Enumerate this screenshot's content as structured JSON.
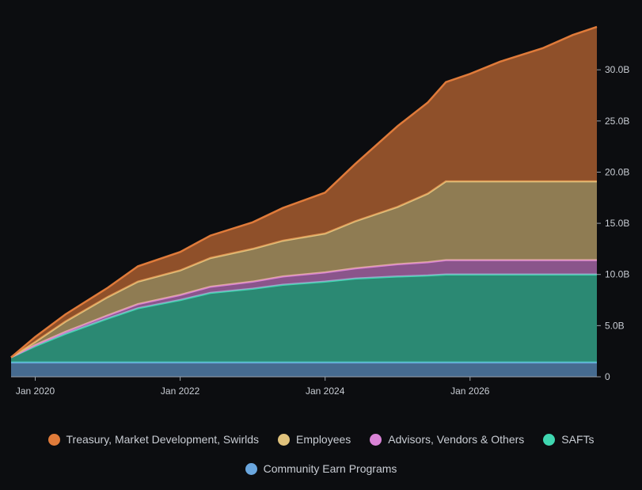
{
  "chart_data": {
    "type": "area",
    "stacked": true,
    "x": [
      "2019-09",
      "2020-01",
      "2020-06",
      "2021-01",
      "2021-06",
      "2022-01",
      "2022-06",
      "2023-01",
      "2023-06",
      "2024-01",
      "2024-06",
      "2025-01",
      "2025-06",
      "2025-09",
      "2026-01",
      "2026-06",
      "2027-01",
      "2027-06",
      "2027-10"
    ],
    "series": [
      {
        "name": "Community Earn Programs",
        "color": "#6aa6de",
        "values": [
          1.4,
          1.4,
          1.4,
          1.4,
          1.4,
          1.4,
          1.4,
          1.4,
          1.4,
          1.4,
          1.4,
          1.4,
          1.4,
          1.4,
          1.4,
          1.4,
          1.4,
          1.4,
          1.4
        ]
      },
      {
        "name": "SAFTs",
        "color": "#3fd6b0",
        "values": [
          0.5,
          1.6,
          2.8,
          4.3,
          5.3,
          6.1,
          6.8,
          7.2,
          7.6,
          7.9,
          8.2,
          8.4,
          8.5,
          8.6,
          8.6,
          8.6,
          8.6,
          8.6,
          8.6
        ]
      },
      {
        "name": "Advisors, Vendors & Others",
        "color": "#d983d6",
        "values": [
          0.0,
          0.1,
          0.2,
          0.3,
          0.4,
          0.5,
          0.6,
          0.7,
          0.8,
          0.9,
          1.0,
          1.2,
          1.3,
          1.4,
          1.4,
          1.4,
          1.4,
          1.4,
          1.4
        ]
      },
      {
        "name": "Employees",
        "color": "#e0c27c",
        "values": [
          0.0,
          0.3,
          1.0,
          1.8,
          2.2,
          2.4,
          2.8,
          3.2,
          3.5,
          3.8,
          4.6,
          5.6,
          6.7,
          7.7,
          7.7,
          7.7,
          7.7,
          7.7,
          7.7
        ]
      },
      {
        "name": "Treasury, Market Development, Swirlds",
        "color": "#e07b3a",
        "values": [
          0.0,
          0.5,
          0.7,
          0.9,
          1.5,
          1.8,
          2.2,
          2.6,
          3.2,
          4.0,
          5.6,
          7.9,
          8.9,
          9.7,
          10.5,
          11.7,
          13.0,
          14.3,
          15.1
        ]
      }
    ],
    "x_ticks": [
      "Jan 2020",
      "Jan 2022",
      "Jan 2024",
      "Jan 2026"
    ],
    "x_tick_dates": [
      "2020-01",
      "2022-01",
      "2024-01",
      "2026-01"
    ],
    "y_ticks": [
      "0",
      "5.0B",
      "10.0B",
      "15.0B",
      "20.0B",
      "25.0B",
      "30.0B"
    ],
    "y_tick_values": [
      0,
      5,
      10,
      15,
      20,
      25,
      30
    ],
    "ylim": [
      0,
      34.5
    ],
    "ylabel_unit": "B",
    "grid": false,
    "y_axis_side": "right",
    "legend_position": "bottom"
  },
  "legend_row1": [
    "Treasury, Market Development, Swirlds",
    "Employees",
    "Advisors, Vendors & Others",
    "SAFTs"
  ],
  "legend_row2": [
    "Community Earn Programs"
  ]
}
